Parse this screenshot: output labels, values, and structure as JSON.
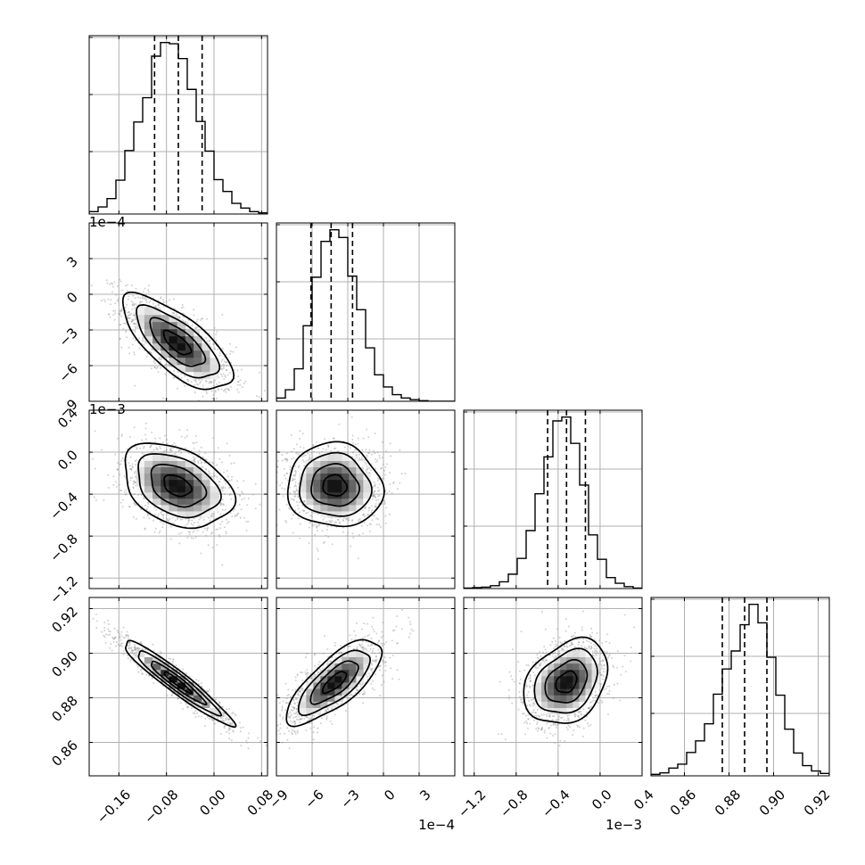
{
  "chart_data": {
    "type": "corner",
    "grid": true,
    "parameters": [
      {
        "key": "p0",
        "range": [
          -0.21,
          0.09
        ],
        "ticks": [
          -0.16,
          -0.08,
          0.0,
          0.08
        ],
        "tick_labels": [
          "−0.16",
          "−0.08",
          "0.00",
          "0.08"
        ],
        "offset_label": "",
        "quantiles": [
          -0.1,
          -0.06,
          -0.02
        ],
        "histogram": {
          "edges": [
            -0.21,
            -0.195,
            -0.18,
            -0.165,
            -0.15,
            -0.135,
            -0.12,
            -0.105,
            -0.09,
            -0.075,
            -0.06,
            -0.045,
            -0.03,
            -0.015,
            0.0,
            0.015,
            0.03,
            0.045,
            0.06,
            0.075,
            0.09
          ],
          "counts": [
            4,
            12,
            26,
            57,
            107,
            155,
            196,
            266,
            289,
            287,
            262,
            210,
            156,
            106,
            58,
            38,
            18,
            10,
            4,
            2
          ]
        }
      },
      {
        "key": "p1",
        "range": [
          -9.0,
          6.0
        ],
        "ticks": [
          -9,
          -6,
          -3,
          0,
          3
        ],
        "tick_labels": [
          "−9",
          "−6",
          "−3",
          "0",
          "3"
        ],
        "offset_label": "1e−4",
        "quantiles": [
          -6.1,
          -4.4,
          -2.6
        ],
        "histogram": {
          "edges": [
            -9.0,
            -8.25,
            -7.5,
            -6.75,
            -6.0,
            -5.25,
            -4.5,
            -3.75,
            -3.0,
            -2.25,
            -1.5,
            -0.75,
            0.0,
            0.75,
            1.5,
            2.25,
            3.0,
            3.75,
            4.5,
            5.25,
            6.0
          ],
          "counts": [
            6,
            21,
            59,
            137,
            225,
            290,
            311,
            297,
            227,
            166,
            97,
            48,
            26,
            12,
            6,
            3,
            1,
            0,
            0,
            0
          ]
        }
      },
      {
        "key": "p2",
        "range": [
          -1.3,
          0.4
        ],
        "ticks": [
          -1.2,
          -0.8,
          -0.4,
          0.0,
          0.4
        ],
        "tick_labels": [
          "−1.2",
          "−0.8",
          "−0.4",
          "0.0",
          "0.4"
        ],
        "offset_label": "1e−3",
        "quantiles": [
          -0.5,
          -0.32,
          -0.14
        ],
        "histogram": {
          "edges": [
            -1.3,
            -1.215,
            -1.13,
            -1.045,
            -0.96,
            -0.875,
            -0.79,
            -0.705,
            -0.62,
            -0.535,
            -0.45,
            -0.365,
            -0.28,
            -0.195,
            -0.11,
            -0.025,
            0.06,
            0.145,
            0.23,
            0.315,
            0.4
          ],
          "counts": [
            1,
            2,
            3,
            6,
            14,
            30,
            63,
            121,
            198,
            275,
            350,
            358,
            303,
            216,
            112,
            61,
            23,
            11,
            4,
            1
          ]
        }
      },
      {
        "key": "p3",
        "range": [
          0.845,
          0.925
        ],
        "ticks": [
          0.86,
          0.88,
          0.9,
          0.92
        ],
        "tick_labels": [
          "0.86",
          "0.88",
          "0.90",
          "0.92"
        ],
        "offset_label": "",
        "quantiles": [
          0.877,
          0.887,
          0.897
        ],
        "histogram": {
          "edges": [
            0.845,
            0.849,
            0.853,
            0.857,
            0.861,
            0.865,
            0.869,
            0.873,
            0.877,
            0.881,
            0.885,
            0.889,
            0.893,
            0.897,
            0.901,
            0.905,
            0.909,
            0.913,
            0.917,
            0.921,
            0.925
          ],
          "counts": [
            3,
            6,
            16,
            24,
            48,
            72,
            107,
            168,
            220,
            257,
            311,
            353,
            315,
            244,
            166,
            96,
            47,
            21,
            10,
            5
          ]
        }
      }
    ],
    "panels_2d": [
      {
        "x": "p0",
        "y": "p1",
        "mean": [
          -0.062,
          -4.1
        ],
        "sd": [
          0.046,
          2.0
        ],
        "rho": -0.72
      },
      {
        "x": "p0",
        "y": "p2",
        "mean": [
          -0.062,
          -0.32
        ],
        "sd": [
          0.046,
          0.2
        ],
        "rho": -0.35
      },
      {
        "x": "p0",
        "y": "p3",
        "mean": [
          -0.062,
          0.887
        ],
        "sd": [
          0.046,
          0.0095
        ],
        "rho": -0.95
      },
      {
        "x": "p1",
        "y": "p2",
        "mean": [
          -4.1,
          -0.32
        ],
        "sd": [
          2.0,
          0.2
        ],
        "rho": -0.05
      },
      {
        "x": "p1",
        "y": "p3",
        "mean": [
          -4.1,
          0.887
        ],
        "sd": [
          2.0,
          0.0095
        ],
        "rho": 0.75
      },
      {
        "x": "p2",
        "y": "p3",
        "mean": [
          -0.32,
          0.887
        ],
        "sd": [
          0.2,
          0.0095
        ],
        "rho": 0.3
      }
    ],
    "contour_levels_sigma": [
      0.5,
      1.0,
      1.5,
      2.0
    ],
    "colors": {
      "line": "#000000",
      "scatter": "#9a9a9a",
      "grid": "#b0b0b0",
      "density_dark": "#000000"
    }
  }
}
